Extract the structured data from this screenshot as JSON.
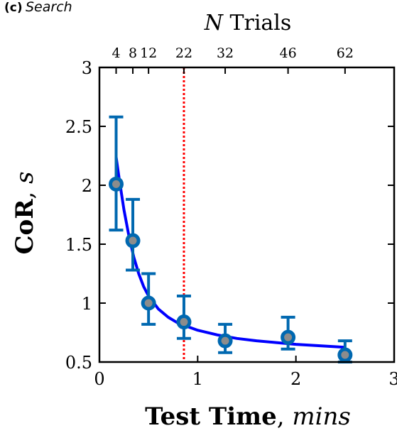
{
  "panel_label": "(c)",
  "panel_title": "Search",
  "chart_data": {
    "type": "scatter",
    "title": "",
    "xlabel": {
      "bold": "Test Time",
      "sep": ", ",
      "italic": "mins"
    },
    "ylabel": {
      "bold": "CoR",
      "sep": ", ",
      "italic": "s"
    },
    "top_axis_label": {
      "italic": "N",
      "rest": " Trials"
    },
    "xlim": [
      0,
      3
    ],
    "ylim": [
      0.5,
      3
    ],
    "x_ticks": [
      0,
      1,
      2,
      3
    ],
    "x_tick_labels": [
      "0",
      "1",
      "2",
      "3"
    ],
    "y_ticks": [
      0.5,
      1,
      1.5,
      2,
      2.5,
      3
    ],
    "y_tick_labels": [
      "0.5",
      "1",
      "1.5",
      "2",
      "2.5",
      "3"
    ],
    "top_ticks": [
      0.17,
      0.34,
      0.5,
      0.86,
      1.28,
      1.92,
      2.5
    ],
    "top_tick_labels": [
      "4",
      "8",
      "12",
      "22",
      "32",
      "46",
      "62"
    ],
    "grid": false,
    "points": [
      {
        "x": 0.17,
        "y": 2.01,
        "err_low": 1.62,
        "err_high": 2.58
      },
      {
        "x": 0.34,
        "y": 1.53,
        "err_low": 1.28,
        "err_high": 1.88
      },
      {
        "x": 0.5,
        "y": 1.0,
        "err_low": 0.82,
        "err_high": 1.25
      },
      {
        "x": 0.86,
        "y": 0.84,
        "err_low": 0.7,
        "err_high": 1.06
      },
      {
        "x": 1.28,
        "y": 0.68,
        "err_low": 0.58,
        "err_high": 0.82
      },
      {
        "x": 1.92,
        "y": 0.71,
        "err_low": 0.61,
        "err_high": 0.88
      },
      {
        "x": 2.5,
        "y": 0.56,
        "err_low": 0.5,
        "err_high": 0.68
      }
    ],
    "fit_curve": {
      "x": [
        0.17,
        0.2,
        0.25,
        0.3,
        0.35,
        0.4,
        0.45,
        0.5,
        0.6,
        0.7,
        0.8,
        0.9,
        1.0,
        1.2,
        1.4,
        1.6,
        1.8,
        2.0,
        2.2,
        2.5
      ],
      "y": [
        2.24,
        2.06,
        1.79,
        1.57,
        1.39,
        1.25,
        1.14,
        1.06,
        0.95,
        0.88,
        0.83,
        0.8,
        0.77,
        0.73,
        0.7,
        0.68,
        0.665,
        0.65,
        0.64,
        0.625
      ]
    },
    "reference_line_x": 0.86,
    "colors": {
      "marker_edge": "#0068b0",
      "marker_fill": "#8c8c8c",
      "errorbar": "#0068b0",
      "fit": "#0000ff",
      "reference": "#ff0000"
    }
  }
}
